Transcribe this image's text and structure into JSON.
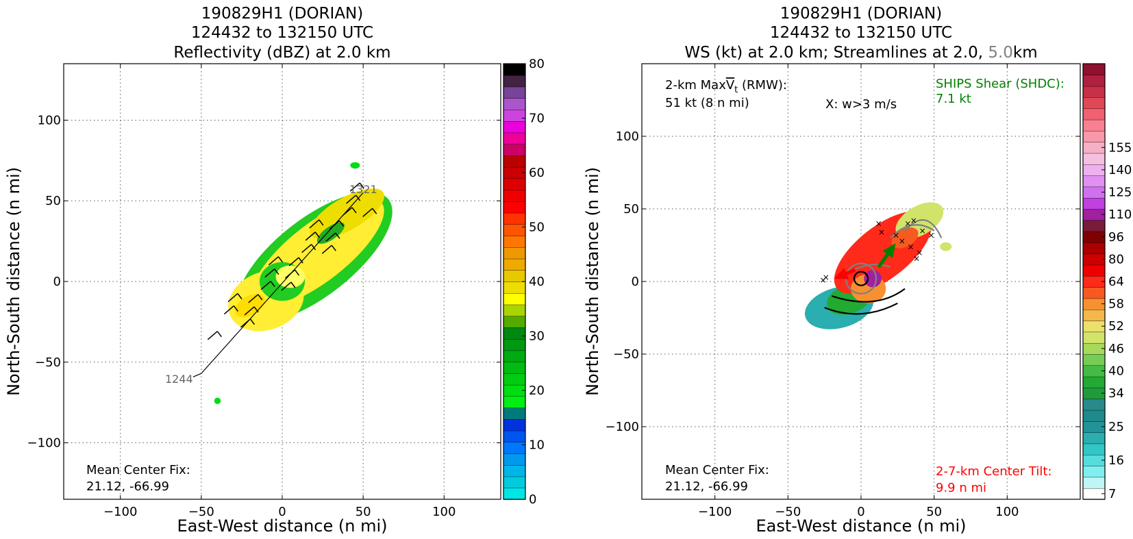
{
  "colors": {
    "black": "#000000",
    "gray": "#808080",
    "green": "#008000",
    "red": "#ff0000"
  },
  "chart_data": [
    {
      "type": "heatmap",
      "title_lines": [
        "190829H1 (DORIAN)",
        "124432 to 132150 UTC",
        "Reflectivity (dBZ) at 2.0 km"
      ],
      "xlabel": "East-West distance (n mi)",
      "ylabel": "North-South distance (n mi)",
      "xlim": [
        -135,
        135
      ],
      "ylim": [
        -135,
        135
      ],
      "xticks": [
        -100,
        -50,
        0,
        50,
        100
      ],
      "yticks": [
        -100,
        -50,
        0,
        50,
        100
      ],
      "xtick_labels": [
        "−100",
        "−50",
        "0",
        "50",
        "100"
      ],
      "ytick_labels": [
        "−100",
        "−50",
        "0",
        "50",
        "100"
      ],
      "grid": true,
      "annotations": {
        "track_start_label": "1244",
        "track_end_label": "1321",
        "mean_center_label": "Mean Center Fix:",
        "mean_center_value": "21.12, -66.99"
      },
      "flight_track": [
        [
          -50,
          -57
        ],
        [
          50,
          55
        ]
      ],
      "colorbar": {
        "vmin": 0,
        "vmax": 80,
        "ticks": [
          0,
          10,
          20,
          30,
          40,
          50,
          60,
          70,
          80
        ],
        "tick_labels": [
          "0",
          "10",
          "20",
          "30",
          "40",
          "50",
          "60",
          "70",
          "80"
        ],
        "colors": [
          "#00e5e5",
          "#00ccdd",
          "#00b5e8",
          "#0099ee",
          "#0077ff",
          "#0055ee",
          "#0033dd",
          "#007a7a",
          "#00ee11",
          "#00dd11",
          "#00cc11",
          "#00bb11",
          "#00aa11",
          "#009911",
          "#008811",
          "#55aa00",
          "#aad400",
          "#ffff00",
          "#eedd00",
          "#e8c800",
          "#eeaa00",
          "#ee9900",
          "#ff7700",
          "#ff5500",
          "#ff3300",
          "#ff0000",
          "#ee0000",
          "#dd0000",
          "#cc0000",
          "#bb0000",
          "#cc0066",
          "#ee0099",
          "#ee00dd",
          "#cc44dd",
          "#aa55cc",
          "#774499",
          "#442244",
          "#000000"
        ]
      }
    },
    {
      "type": "heatmap",
      "title_lines": [
        "190829H1 (DORIAN)",
        "124432 to 132150 UTC"
      ],
      "title_line3": {
        "part1": "WS (kt) at 2.0 km; Streamlines at 2.0, ",
        "part2": "5.0",
        "part3": "km"
      },
      "xlabel": "East-West distance (n mi)",
      "ylabel": "North-South distance (n mi)",
      "xlim": [
        -150,
        150
      ],
      "ylim": [
        -150,
        150
      ],
      "xticks": [
        -100,
        -50,
        0,
        50,
        100
      ],
      "yticks": [
        -100,
        -50,
        0,
        50,
        100
      ],
      "xtick_labels": [
        "−100",
        "−50",
        "0",
        "50",
        "100"
      ],
      "ytick_labels": [
        "−100",
        "−50",
        "0",
        "50",
        "100"
      ],
      "grid": true,
      "annotations": {
        "maxvt_line1_a": "2-km Max",
        "maxvt_line1_v": "V",
        "maxvt_line1_sub": "t",
        "maxvt_line1_b": " (RMW):",
        "maxvt_line2": "51 kt (8 n mi)",
        "w_label": "X: w>3 m/s",
        "shear_label": "SHIPS Shear (SHDC):",
        "shear_value": "7.1 kt",
        "mean_center_label": "Mean Center Fix:",
        "mean_center_value": "21.12, -66.99",
        "tilt_label": "2-7-km Center Tilt:",
        "tilt_value": "9.9 n mi"
      },
      "shear_arrow": {
        "from": [
          12,
          10
        ],
        "to": [
          22,
          24
        ]
      },
      "tilt_arrow": {
        "from": [
          -4,
          8
        ],
        "to": [
          -16,
          3
        ]
      },
      "colorbar": {
        "ticks": [
          7,
          16,
          25,
          34,
          40,
          46,
          52,
          58,
          64,
          80,
          96,
          110,
          125,
          140,
          155
        ],
        "tick_labels": [
          "7",
          "16",
          "25",
          "34",
          "40",
          "46",
          "52",
          "58",
          "64",
          "80",
          "96",
          "110",
          "125",
          "140",
          "155"
        ],
        "tick_slots": [
          0,
          3,
          6,
          9,
          11,
          13,
          15,
          17,
          19,
          21,
          23,
          25,
          27,
          29,
          31
        ],
        "colors": [
          "#ffffff",
          "#bff5f5",
          "#80eeee",
          "#55dddd",
          "#33c6c6",
          "#2aaeb0",
          "#229499",
          "#1e8a8a",
          "#2a8a8a",
          "#1f9b3c",
          "#22aa33",
          "#44bb44",
          "#77cc55",
          "#a7d95a",
          "#d2e36a",
          "#eae06a",
          "#f4b84a",
          "#f79030",
          "#f65a20",
          "#ff2a1a",
          "#ee0000",
          "#cc0000",
          "#aa0000",
          "#800000",
          "#7a1b3a",
          "#a020a0",
          "#c040e0",
          "#d070f0",
          "#e090f0",
          "#f0b0f0",
          "#f5c0e0",
          "#f5b0c8",
          "#f898a8",
          "#f88090",
          "#f06070",
          "#e04858",
          "#c83048",
          "#b02040",
          "#901030"
        ]
      }
    }
  ]
}
